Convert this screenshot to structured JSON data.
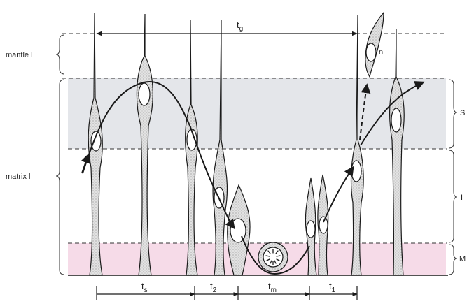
{
  "labels": {
    "left": {
      "mantle": "mantle l",
      "matrix": "matrix l"
    },
    "right": {
      "S": "S",
      "I": "I",
      "M": "M"
    },
    "top_span": {
      "main": "t",
      "sub": "g"
    },
    "bottom_spans": [
      {
        "main": "t",
        "sub": "s"
      },
      {
        "main": "t",
        "sub": "2"
      },
      {
        "main": "t",
        "sub": "m"
      },
      {
        "main": "t",
        "sub": "1"
      }
    ],
    "neuron": "n"
  },
  "colors": {
    "s_zone": "#e4e6ea",
    "m_zone": "#f6dbe8",
    "stroke": "#1a1a1a",
    "cell_fill": "#d4d4d4"
  }
}
